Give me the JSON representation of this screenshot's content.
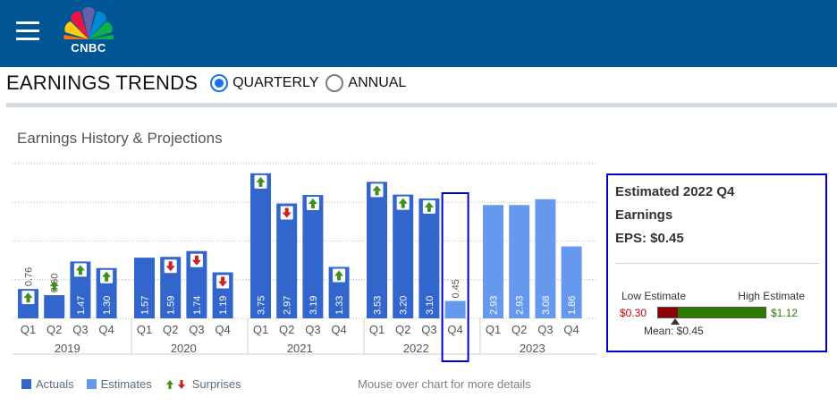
{
  "header": {
    "logo_text": "CNBC"
  },
  "page": {
    "title": "EARNINGS TRENDS",
    "options": [
      {
        "label": "QUARTERLY",
        "checked": true
      },
      {
        "label": "ANNUAL",
        "checked": false
      }
    ],
    "chart_title": "Earnings History & Projections"
  },
  "legend": {
    "actuals": "Actuals",
    "estimates": "Estimates",
    "surprises": "Surprises",
    "note": "Mouse over chart for more details"
  },
  "colors": {
    "header": "#005594",
    "actual": "#3366cc",
    "estimate": "#6699ee",
    "surprise_up": "#3f8f1f",
    "surprise_down": "#cc2222",
    "highlight": "#0000cc"
  },
  "chart_data": {
    "type": "bar",
    "years": [
      "2019",
      "2020",
      "2021",
      "2022",
      "2023"
    ],
    "series": [
      {
        "name": "Actuals",
        "points": [
          {
            "year": "2019",
            "quarter": "Q1",
            "value": 0.76,
            "surprise": "up"
          },
          {
            "year": "2019",
            "quarter": "Q2",
            "value": 0.6,
            "surprise": "up"
          },
          {
            "year": "2019",
            "quarter": "Q3",
            "value": 1.47,
            "surprise": "up"
          },
          {
            "year": "2019",
            "quarter": "Q4",
            "value": 1.3,
            "surprise": "up"
          },
          {
            "year": "2020",
            "quarter": "Q1",
            "value": 1.57,
            "surprise": "none"
          },
          {
            "year": "2020",
            "quarter": "Q2",
            "value": 1.59,
            "surprise": "down"
          },
          {
            "year": "2020",
            "quarter": "Q3",
            "value": 1.74,
            "surprise": "down"
          },
          {
            "year": "2020",
            "quarter": "Q4",
            "value": 1.19,
            "surprise": "down"
          },
          {
            "year": "2021",
            "quarter": "Q1",
            "value": 3.75,
            "surprise": "up"
          },
          {
            "year": "2021",
            "quarter": "Q2",
            "value": 2.97,
            "surprise": "down"
          },
          {
            "year": "2021",
            "quarter": "Q3",
            "value": 3.19,
            "surprise": "up"
          },
          {
            "year": "2021",
            "quarter": "Q4",
            "value": 1.33,
            "surprise": "up"
          },
          {
            "year": "2022",
            "quarter": "Q1",
            "value": 3.53,
            "surprise": "up"
          },
          {
            "year": "2022",
            "quarter": "Q2",
            "value": 3.2,
            "surprise": "up"
          },
          {
            "year": "2022",
            "quarter": "Q3",
            "value": 3.1,
            "surprise": "up"
          }
        ]
      },
      {
        "name": "Estimates",
        "points": [
          {
            "year": "2022",
            "quarter": "Q4",
            "value": 0.45,
            "surprise": "none",
            "highlighted": true
          },
          {
            "year": "2023",
            "quarter": "Q1",
            "value": 2.93,
            "surprise": "none"
          },
          {
            "year": "2023",
            "quarter": "Q2",
            "value": 2.93,
            "surprise": "none"
          },
          {
            "year": "2023",
            "quarter": "Q3",
            "value": 3.08,
            "surprise": "none"
          },
          {
            "year": "2023",
            "quarter": "Q4",
            "value": 1.86,
            "surprise": "none"
          }
        ]
      }
    ],
    "ylim": [
      0,
      4
    ],
    "grid": true
  },
  "info": {
    "title_line1": "Estimated 2022 Q4",
    "title_line2": "Earnings",
    "title_line3": "EPS: $0.45",
    "low_label": "Low Estimate",
    "high_label": "High Estimate",
    "low_value": "$0.30",
    "high_value": "$1.12",
    "mean_label": "Mean: $0.45",
    "low": 0.3,
    "high": 1.12,
    "mean": 0.45
  }
}
